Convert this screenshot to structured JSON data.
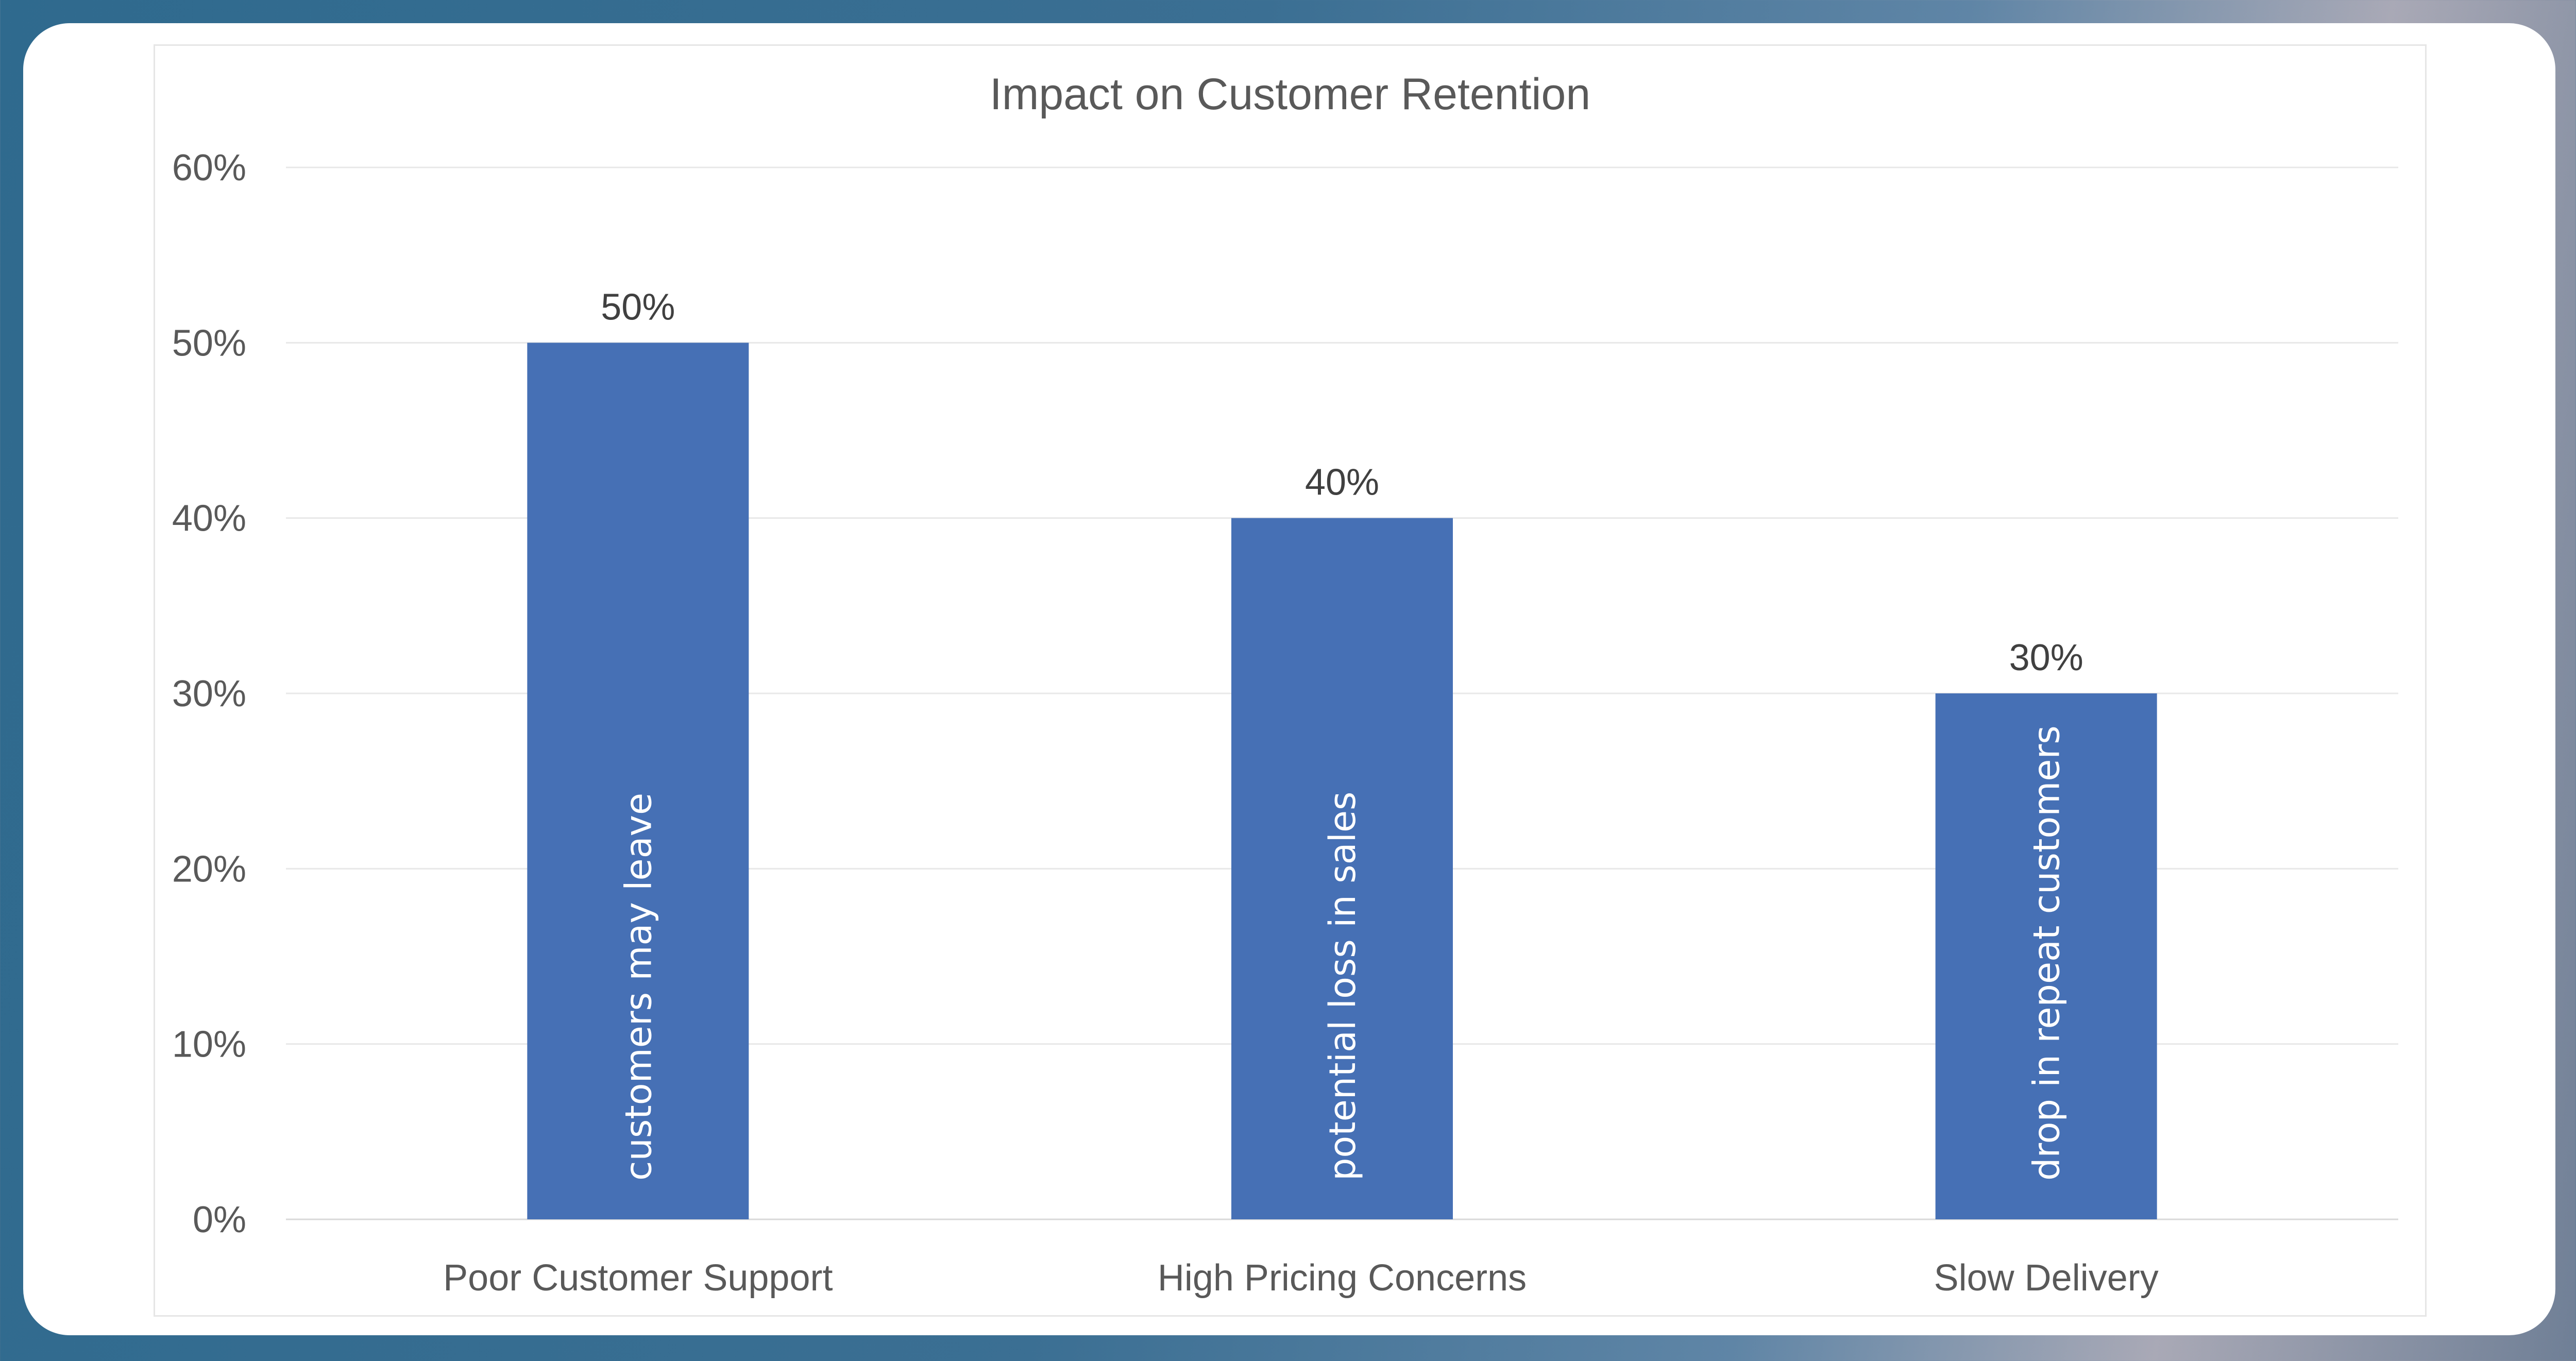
{
  "chart_data": {
    "type": "bar",
    "title": "Impact on Customer Retention",
    "categories": [
      "Poor Customer Support",
      "High Pricing Concerns",
      "Slow Delivery"
    ],
    "values": [
      50,
      40,
      30
    ],
    "data_labels": [
      "50%",
      "40%",
      "30%"
    ],
    "bar_annotations": [
      "customers may leave",
      "potential loss in sales",
      "drop in repeat customers"
    ],
    "ylim": [
      0,
      60
    ],
    "y_ticks": [
      "0%",
      "10%",
      "20%",
      "30%",
      "40%",
      "50%",
      "60%"
    ],
    "xlabel": "",
    "ylabel": "",
    "grid": true,
    "legend": "none",
    "bar_color": "#4670b5",
    "grid_color": "#e8e8e8"
  }
}
